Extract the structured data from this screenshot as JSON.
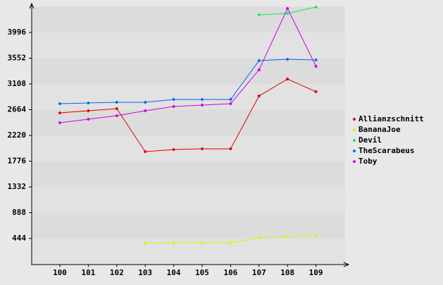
{
  "chart_data": {
    "type": "line",
    "categories": [
      "100",
      "101",
      "102",
      "103",
      "104",
      "105",
      "106",
      "107",
      "108",
      "109"
    ],
    "series": [
      {
        "name": "Allianzschnitt",
        "color": "#e00000",
        "values": [
          2609,
          2646,
          2682,
          1940,
          1977,
          1989,
          1989,
          2901,
          3193,
          2974
        ]
      },
      {
        "name": "BananaJoe",
        "color": "#e0f000",
        "values": [
          null,
          null,
          null,
          359,
          371,
          371,
          371,
          456,
          480,
          493
        ]
      },
      {
        "name": "Devil",
        "color": "#00ee66",
        "values": [
          null,
          null,
          null,
          null,
          null,
          null,
          null,
          4300,
          4325,
          4434
        ]
      },
      {
        "name": "TheScarabeus",
        "color": "#0066ee",
        "values": [
          2767,
          2780,
          2792,
          2792,
          2841,
          2841,
          2841,
          3510,
          3534,
          3521
        ]
      },
      {
        "name": "Toby",
        "color": "#cc00dd",
        "values": [
          2439,
          2500,
          2561,
          2646,
          2719,
          2743,
          2767,
          3351,
          4410,
          3412
        ]
      }
    ],
    "ylim": [
      0,
      4440
    ],
    "yticks": [
      444,
      888,
      1332,
      1776,
      2220,
      2664,
      3108,
      3552,
      3996
    ],
    "grid": true
  }
}
